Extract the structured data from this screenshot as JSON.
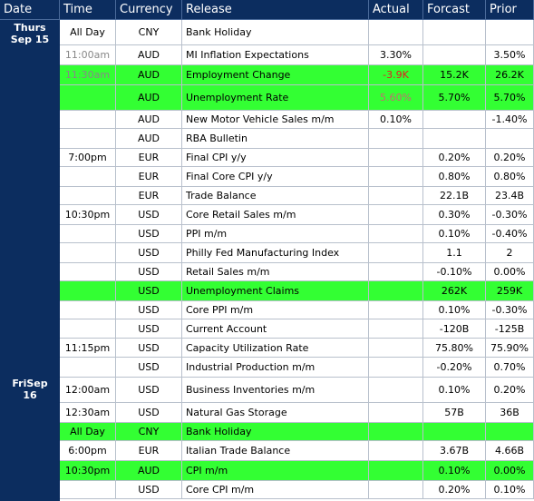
{
  "header": [
    "Date",
    "Time",
    "Currency",
    "Release",
    "Actual",
    "Forcast",
    "Prior"
  ],
  "dates": [
    [
      "Thurs",
      "Sep 15"
    ],
    [
      "FriSep",
      "16"
    ]
  ],
  "rows": [
    [
      "All Day",
      "CNY",
      "Bank Holiday",
      null,
      null,
      null
    ],
    [
      "11:00am",
      "AUD",
      "MI Inflation Expectations",
      "3.30%",
      null,
      "3.50%"
    ],
    [
      "11:30am",
      "AUD",
      "Employment Change",
      "-3.9K",
      "15.2K",
      "26.2K"
    ],
    [
      null,
      "AUD",
      "Unemployment Rate",
      "5.60%",
      "5.70%",
      "5.70%"
    ],
    [
      null,
      "AUD",
      "New Motor Vehicle Sales m/m",
      "0.10%",
      null,
      "-1.40%"
    ],
    [
      null,
      "AUD",
      "RBA Bulletin",
      null,
      null,
      null
    ],
    [
      "7:00pm",
      "EUR",
      "Final CPI y/y",
      null,
      "0.20%",
      "0.20%"
    ],
    [
      null,
      "EUR",
      "Final Core CPI y/y",
      null,
      "0.80%",
      "0.80%"
    ],
    [
      null,
      "EUR",
      "Trade Balance",
      null,
      "22.1B",
      "23.4B"
    ],
    [
      "10:30pm",
      "USD",
      "Core Retail Sales m/m",
      null,
      "0.30%",
      "-0.30%"
    ],
    [
      null,
      "USD",
      "PPI m/m",
      null,
      "0.10%",
      "-0.40%"
    ],
    [
      null,
      "USD",
      "Philly Fed Manufacturing Index",
      null,
      "1.1",
      "2"
    ],
    [
      null,
      "USD",
      "Retail Sales m/m",
      null,
      "-0.10%",
      "0.00%"
    ],
    [
      null,
      "USD",
      "Unemployment Claims",
      null,
      "262K",
      "259K"
    ],
    [
      null,
      "USD",
      "Core PPI m/m",
      null,
      "0.10%",
      "-0.30%"
    ],
    [
      null,
      "USD",
      "Current Account",
      null,
      "-120B",
      "-125B"
    ],
    [
      "11:15pm",
      "USD",
      "Capacity Utilization Rate",
      null,
      "75.80%",
      "75.90%"
    ],
    [
      null,
      "USD",
      "Industrial Production m/m",
      null,
      "-0.20%",
      "0.70%"
    ],
    [
      "12:00am",
      "USD",
      "Business Inventories m/m",
      null,
      "0.10%",
      "0.20%"
    ],
    [
      "12:30am",
      "USD",
      "Natural Gas Storage",
      null,
      "57B",
      "36B"
    ],
    [
      "All Day",
      "CNY",
      "Bank Holiday",
      null,
      null,
      null
    ],
    [
      "6:00pm",
      "EUR",
      "Italian Trade Balance",
      null,
      "3.67B",
      "4.66B"
    ],
    [
      "10:30pm",
      "AUD",
      "CPI m/m",
      null,
      "0.10%",
      "0.00%"
    ],
    [
      null,
      "USD",
      "Core CPI m/m",
      null,
      "0.20%",
      "0.10%"
    ]
  ]
}
